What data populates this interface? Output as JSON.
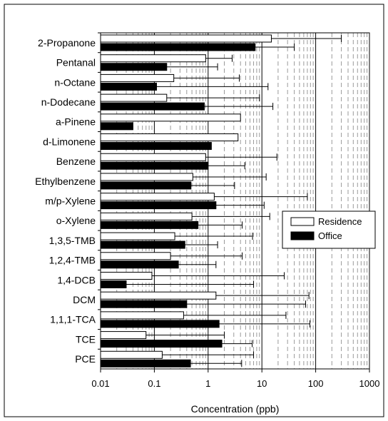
{
  "chart_data": {
    "type": "bar",
    "orientation": "horizontal",
    "x_scale": "log",
    "xlim": [
      0.01,
      1000
    ],
    "xlabel": "Concentration (ppb)",
    "ylabel": "",
    "title": "",
    "x_ticks": [
      "0.01",
      "0.1",
      "1",
      "10",
      "100",
      "1000"
    ],
    "grid": "vertical minor dashed, major solid",
    "legend_position": "right",
    "categories": [
      "2-Propanone",
      "Pentanal",
      "n-Octane",
      "n-Dodecane",
      "a-Pinene",
      "d-Limonene",
      "Benzene",
      "Ethylbenzene",
      "m/p-Xylene",
      "o-Xylene",
      "1,3,5-TMB",
      "1,2,4-TMB",
      "1,4-DCB",
      "DCM",
      "1,1,1-TCA",
      "TCE",
      "PCE"
    ],
    "series": [
      {
        "name": "Residence",
        "color": "#ffffff",
        "values": [
          15,
          0.9,
          0.23,
          0.17,
          4,
          3.6,
          0.9,
          0.52,
          1.3,
          0.5,
          0.24,
          0.2,
          0.09,
          1.4,
          0.35,
          0.07,
          0.14
        ],
        "error_upper": [
          300,
          2.8,
          3.8,
          9,
          null,
          null,
          19,
          12,
          70,
          14,
          6.7,
          4.3,
          26,
          75,
          28,
          2,
          7
        ]
      },
      {
        "name": "Office",
        "color": "#000000",
        "values": [
          7.5,
          0.17,
          0.11,
          0.85,
          0.04,
          1.15,
          1.0,
          0.48,
          1.4,
          0.65,
          0.37,
          0.28,
          0.03,
          0.4,
          1.6,
          1.8,
          0.47
        ],
        "error_upper": [
          40,
          1.5,
          13,
          16,
          null,
          null,
          4.8,
          3.1,
          11,
          4.3,
          1.5,
          1.4,
          7,
          65,
          78,
          6.6,
          4.2
        ]
      }
    ]
  }
}
